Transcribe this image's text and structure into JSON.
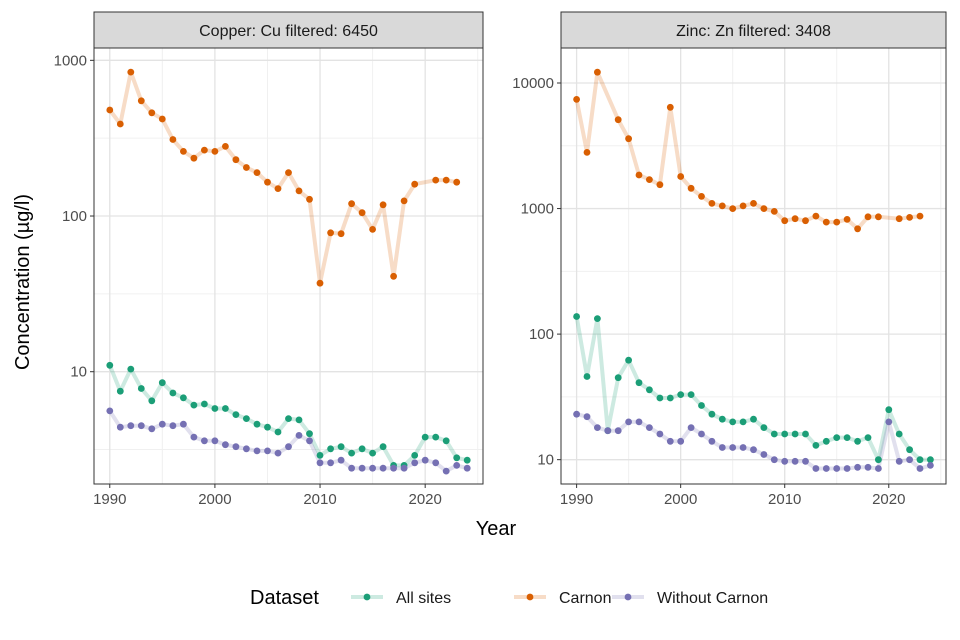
{
  "chart_data": {
    "type": "line",
    "y_title": "Concentration (µg/l)",
    "x_title": "Year",
    "legend_title": "Dataset",
    "y_scale": "log10",
    "series_names": [
      "All sites",
      "Carnon",
      "Without Carnon"
    ],
    "colors": {
      "All sites": "#1b9e77",
      "Carnon": "#d95f02",
      "Without Carnon": "#7570b3"
    },
    "panels": [
      {
        "title": "Copper: Cu filtered: 6450",
        "ylim": [
          1.9,
          1200
        ],
        "yticks": [
          10,
          100,
          1000
        ],
        "ytick_labels": [
          "10",
          "100",
          "1000"
        ],
        "xlim": [
          1988.5,
          2025.5
        ],
        "xticks": [
          1990,
          2000,
          2010,
          2020
        ],
        "xtick_labels": [
          "1990",
          "2000",
          "2010",
          "2020"
        ],
        "series": [
          {
            "name": "Carnon",
            "x": [
              1990,
              1991,
              1992,
              1993,
              1994,
              1995,
              1996,
              1997,
              1998,
              1999,
              2000,
              2001,
              2002,
              2003,
              2004,
              2005,
              2006,
              2007,
              2008,
              2009,
              2010,
              2011,
              2012,
              2013,
              2014,
              2015,
              2016,
              2017,
              2018,
              2019,
              2021,
              2022,
              2023
            ],
            "y": [
              480,
              390,
              840,
              550,
              460,
              420,
              310,
              260,
              235,
              265,
              260,
              280,
              230,
              205,
              190,
              165,
              150,
              190,
              145,
              128,
              37,
              78,
              77,
              120,
              105,
              82,
              118,
              41,
              125,
              160,
              170,
              170,
              165
            ]
          },
          {
            "name": "All sites",
            "x": [
              1990,
              1991,
              1992,
              1993,
              1994,
              1995,
              1996,
              1997,
              1998,
              1999,
              2000,
              2001,
              2002,
              2003,
              2004,
              2005,
              2006,
              2007,
              2008,
              2009,
              2010,
              2011,
              2012,
              2013,
              2014,
              2015,
              2016,
              2017,
              2018,
              2019,
              2020,
              2021,
              2022,
              2023,
              2024
            ],
            "y": [
              11,
              7.5,
              10.4,
              7.8,
              6.5,
              8.5,
              7.3,
              6.8,
              6.1,
              6.2,
              5.8,
              5.8,
              5.3,
              5.0,
              4.6,
              4.4,
              4.1,
              5.0,
              4.9,
              4.0,
              2.9,
              3.2,
              3.3,
              3.0,
              3.2,
              3.0,
              3.3,
              2.5,
              2.5,
              2.9,
              3.8,
              3.8,
              3.6,
              2.8,
              2.7
            ]
          },
          {
            "name": "Without Carnon",
            "x": [
              1990,
              1991,
              1992,
              1993,
              1994,
              1995,
              1996,
              1997,
              1998,
              1999,
              2000,
              2001,
              2002,
              2003,
              2004,
              2005,
              2006,
              2007,
              2008,
              2009,
              2010,
              2011,
              2012,
              2013,
              2014,
              2015,
              2016,
              2017,
              2018,
              2019,
              2020,
              2021,
              2022,
              2023,
              2024
            ],
            "y": [
              5.6,
              4.4,
              4.5,
              4.5,
              4.3,
              4.6,
              4.5,
              4.6,
              3.8,
              3.6,
              3.6,
              3.4,
              3.3,
              3.2,
              3.1,
              3.1,
              3.0,
              3.3,
              3.9,
              3.6,
              2.6,
              2.6,
              2.7,
              2.4,
              2.4,
              2.4,
              2.4,
              2.4,
              2.4,
              2.6,
              2.7,
              2.6,
              2.3,
              2.5,
              2.4
            ]
          }
        ]
      },
      {
        "title": "Zinc: Zn filtered: 3408",
        "ylim": [
          6.4,
          19000
        ],
        "yticks": [
          10,
          100,
          1000,
          10000
        ],
        "ytick_labels": [
          "10",
          "100",
          "1000",
          "10000"
        ],
        "xlim": [
          1988.5,
          2025.5
        ],
        "xticks": [
          1990,
          2000,
          2010,
          2020
        ],
        "xtick_labels": [
          "1990",
          "2000",
          "2010",
          "2020"
        ],
        "series": [
          {
            "name": "Carnon",
            "x": [
              1990,
              1991,
              1992,
              1994,
              1995,
              1996,
              1997,
              1998,
              1999,
              2000,
              2001,
              2002,
              2003,
              2004,
              2005,
              2006,
              2007,
              2008,
              2009,
              2010,
              2011,
              2012,
              2013,
              2014,
              2015,
              2016,
              2017,
              2018,
              2019,
              2021,
              2022,
              2023
            ],
            "y": [
              7400,
              2800,
              12200,
              5100,
              3600,
              1850,
              1700,
              1550,
              6400,
              1800,
              1450,
              1250,
              1100,
              1050,
              1000,
              1050,
              1100,
              1000,
              950,
              800,
              830,
              800,
              870,
              780,
              780,
              820,
              690,
              860,
              860,
              830,
              850,
              870
            ]
          },
          {
            "name": "All sites",
            "x": [
              1990,
              1991,
              1992,
              1993,
              1994,
              1995,
              1996,
              1997,
              1998,
              1999,
              2000,
              2001,
              2002,
              2003,
              2004,
              2005,
              2006,
              2007,
              2008,
              2009,
              2010,
              2011,
              2012,
              2013,
              2014,
              2015,
              2016,
              2017,
              2018,
              2019,
              2020,
              2021,
              2022,
              2023,
              2024
            ],
            "y": [
              138,
              46,
              133,
              17,
              45,
              62,
              41,
              36,
              31,
              31,
              33,
              33,
              27,
              23,
              21,
              20,
              20,
              21,
              18,
              16,
              16,
              16,
              16,
              13,
              14,
              15,
              15,
              14,
              15,
              10,
              25,
              16,
              12,
              10,
              10
            ]
          },
          {
            "name": "Without Carnon",
            "x": [
              1990,
              1991,
              1992,
              1993,
              1994,
              1995,
              1996,
              1997,
              1998,
              1999,
              2000,
              2001,
              2002,
              2003,
              2004,
              2005,
              2006,
              2007,
              2008,
              2009,
              2010,
              2011,
              2012,
              2013,
              2014,
              2015,
              2016,
              2017,
              2018,
              2019,
              2020,
              2021,
              2022,
              2023,
              2024
            ],
            "y": [
              23,
              22,
              18,
              17,
              17,
              20,
              20,
              18,
              16,
              14,
              14,
              18,
              16,
              14,
              12.5,
              12.5,
              12.5,
              12,
              11,
              10,
              9.7,
              9.7,
              9.7,
              8.5,
              8.5,
              8.5,
              8.5,
              8.7,
              8.7,
              8.5,
              20,
              9.7,
              10,
              8.5,
              9
            ]
          }
        ]
      }
    ]
  }
}
